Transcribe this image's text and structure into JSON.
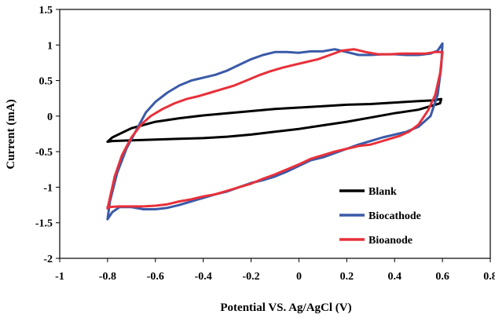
{
  "chart_data": {
    "type": "line",
    "xlabel": "Potential VS. Ag/AgCl (V)",
    "ylabel": "Current (mA)",
    "xlim": [
      -1,
      0.8
    ],
    "ylim": [
      -2,
      1.5
    ],
    "x_ticks": [
      "-1",
      "-0.8",
      "-0.6",
      "-0.4",
      "-0.2",
      "0",
      "0.2",
      "0.4",
      "0.6",
      "0.8"
    ],
    "y_ticks": [
      "1.5",
      "1",
      "0.5",
      "0",
      "-0.5",
      "-1",
      "-1.5",
      "-2"
    ],
    "legend_position": "lower-right",
    "grid": false,
    "series": [
      {
        "name": "Blank",
        "color": "#000000",
        "x": [
          -0.8,
          -0.78,
          -0.7,
          -0.6,
          -0.5,
          -0.4,
          -0.3,
          -0.2,
          -0.1,
          0,
          0.1,
          0.2,
          0.3,
          0.4,
          0.5,
          0.56,
          0.595,
          0.59,
          0.55,
          0.5,
          0.4,
          0.3,
          0.2,
          0.1,
          0,
          -0.1,
          -0.2,
          -0.3,
          -0.4,
          -0.5,
          -0.6,
          -0.7,
          -0.78,
          -0.8
        ],
        "y": [
          -0.36,
          -0.3,
          -0.17,
          -0.08,
          -0.03,
          0.01,
          0.04,
          0.07,
          0.1,
          0.12,
          0.14,
          0.16,
          0.17,
          0.19,
          0.21,
          0.22,
          0.24,
          0.18,
          0.14,
          0.09,
          0.04,
          -0.02,
          -0.08,
          -0.13,
          -0.18,
          -0.22,
          -0.26,
          -0.29,
          -0.31,
          -0.32,
          -0.33,
          -0.34,
          -0.35,
          -0.36
        ]
      },
      {
        "name": "Biocathode",
        "color": "#3a5aa8",
        "x": [
          -0.8,
          -0.79,
          -0.76,
          -0.72,
          -0.68,
          -0.64,
          -0.6,
          -0.55,
          -0.5,
          -0.45,
          -0.4,
          -0.35,
          -0.3,
          -0.25,
          -0.2,
          -0.15,
          -0.1,
          -0.05,
          0,
          0.05,
          0.1,
          0.15,
          0.2,
          0.25,
          0.3,
          0.35,
          0.4,
          0.45,
          0.5,
          0.55,
          0.58,
          0.6,
          0.595,
          0.58,
          0.55,
          0.5,
          0.45,
          0.4,
          0.35,
          0.3,
          0.25,
          0.2,
          0.15,
          0.1,
          0.05,
          0,
          -0.05,
          -0.1,
          -0.15,
          -0.2,
          -0.25,
          -0.3,
          -0.35,
          -0.4,
          -0.45,
          -0.5,
          -0.55,
          -0.6,
          -0.65,
          -0.7,
          -0.75,
          -0.78,
          -0.8
        ],
        "y": [
          -1.45,
          -1.2,
          -0.8,
          -0.45,
          -0.2,
          0.05,
          0.2,
          0.33,
          0.43,
          0.5,
          0.54,
          0.58,
          0.64,
          0.72,
          0.8,
          0.86,
          0.9,
          0.9,
          0.89,
          0.91,
          0.91,
          0.94,
          0.9,
          0.86,
          0.86,
          0.87,
          0.87,
          0.86,
          0.86,
          0.88,
          0.92,
          1.02,
          0.7,
          0.3,
          0.0,
          -0.15,
          -0.22,
          -0.26,
          -0.3,
          -0.35,
          -0.4,
          -0.46,
          -0.52,
          -0.58,
          -0.62,
          -0.7,
          -0.78,
          -0.85,
          -0.9,
          -0.94,
          -1.0,
          -1.06,
          -1.1,
          -1.15,
          -1.2,
          -1.25,
          -1.29,
          -1.31,
          -1.31,
          -1.28,
          -1.28,
          -1.35,
          -1.45
        ]
      },
      {
        "name": "Bioanode",
        "color": "#e8303a",
        "x": [
          -0.8,
          -0.79,
          -0.77,
          -0.74,
          -0.7,
          -0.66,
          -0.62,
          -0.57,
          -0.52,
          -0.47,
          -0.42,
          -0.37,
          -0.32,
          -0.27,
          -0.22,
          -0.17,
          -0.12,
          -0.07,
          -0.02,
          0.03,
          0.08,
          0.13,
          0.18,
          0.23,
          0.28,
          0.33,
          0.38,
          0.43,
          0.48,
          0.53,
          0.57,
          0.6,
          0.59,
          0.57,
          0.54,
          0.5,
          0.46,
          0.42,
          0.38,
          0.34,
          0.3,
          0.25,
          0.2,
          0.15,
          0.1,
          0.05,
          0,
          -0.05,
          -0.1,
          -0.15,
          -0.2,
          -0.25,
          -0.3,
          -0.35,
          -0.4,
          -0.45,
          -0.5,
          -0.55,
          -0.6,
          -0.65,
          -0.7,
          -0.75,
          -0.8
        ],
        "y": [
          -1.3,
          -1.15,
          -0.85,
          -0.55,
          -0.3,
          -0.12,
          0.0,
          0.1,
          0.18,
          0.24,
          0.28,
          0.33,
          0.38,
          0.43,
          0.5,
          0.57,
          0.63,
          0.68,
          0.72,
          0.76,
          0.8,
          0.86,
          0.92,
          0.94,
          0.9,
          0.87,
          0.87,
          0.88,
          0.88,
          0.88,
          0.9,
          0.9,
          0.6,
          0.3,
          0.08,
          -0.12,
          -0.22,
          -0.28,
          -0.32,
          -0.36,
          -0.4,
          -0.42,
          -0.46,
          -0.5,
          -0.55,
          -0.6,
          -0.68,
          -0.75,
          -0.82,
          -0.88,
          -0.95,
          -1.0,
          -1.05,
          -1.1,
          -1.13,
          -1.17,
          -1.2,
          -1.24,
          -1.26,
          -1.27,
          -1.27,
          -1.27,
          -1.28
        ]
      }
    ]
  }
}
